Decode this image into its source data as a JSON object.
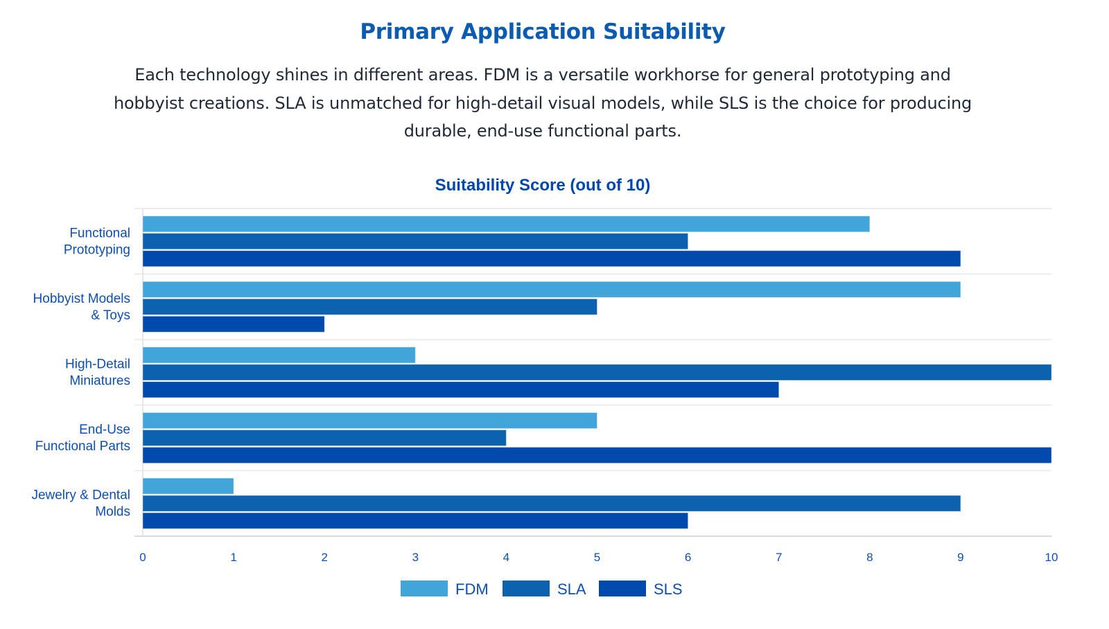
{
  "header": {
    "title": "Primary Application Suitability",
    "description": "Each technology shines in different areas. FDM is a versatile workhorse for general prototyping and hobbyist creations. SLA is unmatched for high-detail visual models, while SLS is the choice for producing durable, end-use functional parts."
  },
  "chart_data": {
    "type": "bar",
    "orientation": "horizontal",
    "title": "Suitability Score (out of 10)",
    "xlabel": "",
    "ylabel": "",
    "xlim": [
      0,
      10
    ],
    "xticks": [
      "0",
      "1",
      "2",
      "3",
      "4",
      "5",
      "6",
      "7",
      "8",
      "9",
      "10"
    ],
    "grid": true,
    "legend_position": "bottom",
    "categories": [
      [
        "Functional",
        "Prototyping"
      ],
      [
        "Hobbyist Models",
        "& Toys"
      ],
      [
        "High-Detail",
        "Miniatures"
      ],
      [
        "End-Use",
        "Functional Parts"
      ],
      [
        "Jewelry & Dental",
        "Molds"
      ]
    ],
    "series": [
      {
        "name": "FDM",
        "color": "#42a5da",
        "values": [
          8,
          9,
          3,
          5,
          1
        ]
      },
      {
        "name": "SLA",
        "color": "#0d62af",
        "values": [
          6,
          5,
          10,
          4,
          9
        ]
      },
      {
        "name": "SLS",
        "color": "#004aad",
        "values": [
          9,
          2,
          7,
          10,
          6
        ]
      }
    ]
  }
}
